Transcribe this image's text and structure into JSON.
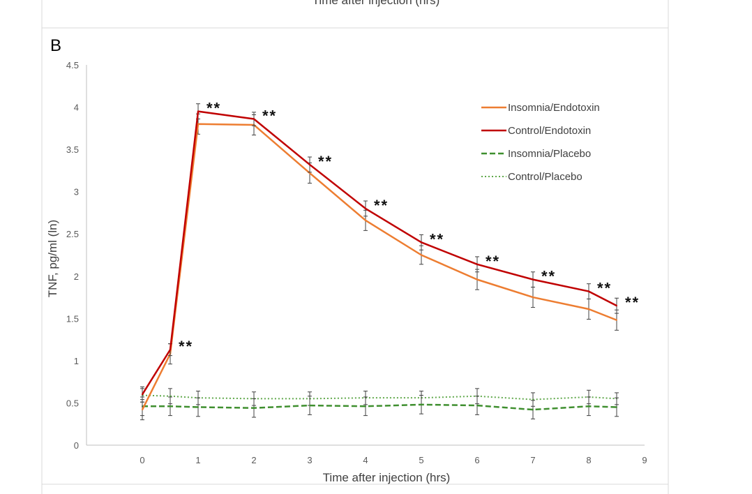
{
  "figure": {
    "top_caption": "Time after injection (hrs)",
    "panel_label": "B"
  },
  "colors": {
    "insomnia_endotoxin": "#ED7D31",
    "control_endotoxin": "#C00000",
    "insomnia_placebo": "#3F8F2F",
    "control_placebo": "#5FA84A",
    "axis": "#BFBFBF",
    "tick_text": "#595959",
    "error_bar": "#404040"
  },
  "chart_data": {
    "type": "line",
    "title": "",
    "xlabel": "Time after injection (hrs)",
    "ylabel": "TNF, pg/ml (ln)",
    "xlim": [
      -1,
      9
    ],
    "ylim": [
      0,
      4.5
    ],
    "xticks": [
      "0",
      "1",
      "2",
      "3",
      "4",
      "5",
      "6",
      "7",
      "8",
      "9"
    ],
    "yticks": [
      "0",
      "0.5",
      "1",
      "1.5",
      "2",
      "2.5",
      "3",
      "3.5",
      "4",
      "4.5"
    ],
    "grid": false,
    "legend_position": "top-right",
    "x": [
      0,
      0.5,
      1,
      2,
      3,
      4,
      5,
      6,
      7,
      8,
      8.5
    ],
    "series": [
      {
        "name": "Insomnia/Endotoxin",
        "style": "solid",
        "values": [
          0.42,
          1.08,
          3.8,
          3.79,
          3.22,
          2.66,
          2.25,
          1.96,
          1.75,
          1.61,
          1.48
        ],
        "errors": [
          0.12,
          0.12,
          0.12,
          0.12,
          0.12,
          0.12,
          0.11,
          0.12,
          0.12,
          0.12,
          0.12
        ]
      },
      {
        "name": "Control/Endotoxin",
        "style": "solid",
        "values": [
          0.6,
          1.13,
          3.95,
          3.86,
          3.32,
          2.8,
          2.4,
          2.14,
          1.96,
          1.82,
          1.65
        ],
        "errors": [
          0.09,
          0.07,
          0.09,
          0.08,
          0.09,
          0.09,
          0.09,
          0.09,
          0.09,
          0.09,
          0.09
        ]
      },
      {
        "name": "Insomnia/Placebo",
        "style": "dashed",
        "values": [
          0.46,
          0.46,
          0.45,
          0.44,
          0.47,
          0.46,
          0.48,
          0.47,
          0.42,
          0.46,
          0.45
        ],
        "errors": [
          0.11,
          0.11,
          0.11,
          0.11,
          0.11,
          0.11,
          0.11,
          0.11,
          0.11,
          0.11,
          0.11
        ]
      },
      {
        "name": "Control/Placebo",
        "style": "dotted",
        "values": [
          0.59,
          0.58,
          0.56,
          0.55,
          0.55,
          0.56,
          0.56,
          0.58,
          0.54,
          0.57,
          0.55
        ],
        "errors": [
          0.08,
          0.09,
          0.08,
          0.08,
          0.08,
          0.08,
          0.08,
          0.09,
          0.08,
          0.08,
          0.07
        ]
      }
    ],
    "annotations": [
      {
        "text": "**",
        "x": 0.5,
        "y": 1.13
      },
      {
        "text": "**",
        "x": 1,
        "y": 3.95
      },
      {
        "text": "**",
        "x": 2,
        "y": 3.86
      },
      {
        "text": "**",
        "x": 3,
        "y": 3.32
      },
      {
        "text": "**",
        "x": 4,
        "y": 2.8
      },
      {
        "text": "**",
        "x": 5,
        "y": 2.4
      },
      {
        "text": "**",
        "x": 6,
        "y": 2.14
      },
      {
        "text": "**",
        "x": 7,
        "y": 1.96
      },
      {
        "text": "**",
        "x": 8,
        "y": 1.82
      },
      {
        "text": "**",
        "x": 8.5,
        "y": 1.65
      }
    ]
  }
}
